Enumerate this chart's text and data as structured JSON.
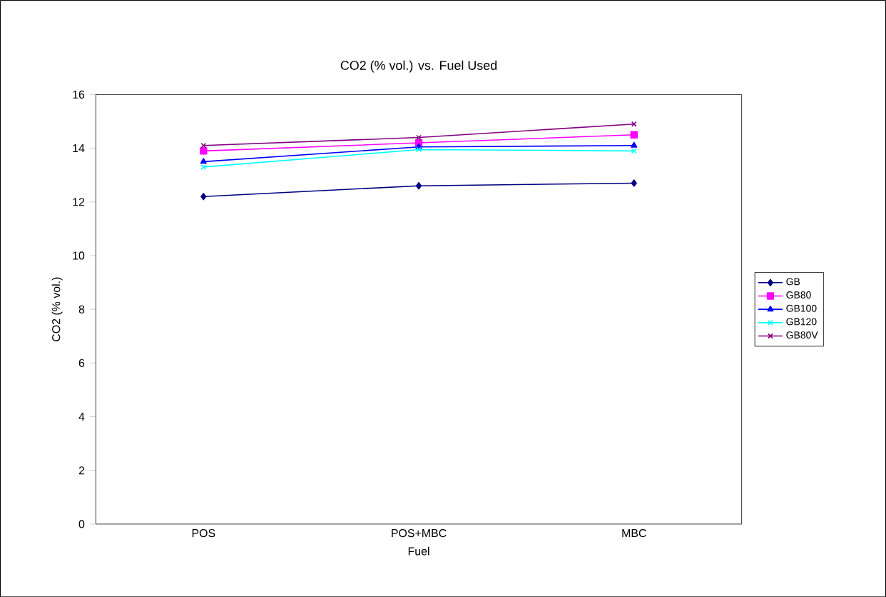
{
  "chart_data": {
    "type": "line",
    "title": "CO2 (% vol.) vs. Fuel Used",
    "xlabel": "Fuel",
    "ylabel": "CO2 (% vol.)",
    "categories": [
      "POS",
      "POS+MBC",
      "MBC"
    ],
    "series": [
      {
        "name": "GB",
        "color": "#000080",
        "marker": "diamond",
        "values": [
          12.2,
          12.6,
          12.7
        ]
      },
      {
        "name": "GB80",
        "color": "#ff00ff",
        "marker": "square",
        "values": [
          13.9,
          14.2,
          14.5
        ]
      },
      {
        "name": "GB100",
        "color": "#0000ff",
        "marker": "triangle",
        "values": [
          13.5,
          14.05,
          14.1
        ]
      },
      {
        "name": "GB120",
        "color": "#00ffff",
        "marker": "cross",
        "values": [
          13.3,
          13.95,
          13.9
        ]
      },
      {
        "name": "GB80V",
        "color": "#800080",
        "marker": "cross",
        "values": [
          14.1,
          14.4,
          14.9
        ]
      }
    ],
    "ylim": [
      0,
      16
    ],
    "yticks": [
      0,
      2,
      4,
      6,
      8,
      10,
      12,
      14,
      16
    ],
    "grid": false,
    "legend": "right"
  }
}
